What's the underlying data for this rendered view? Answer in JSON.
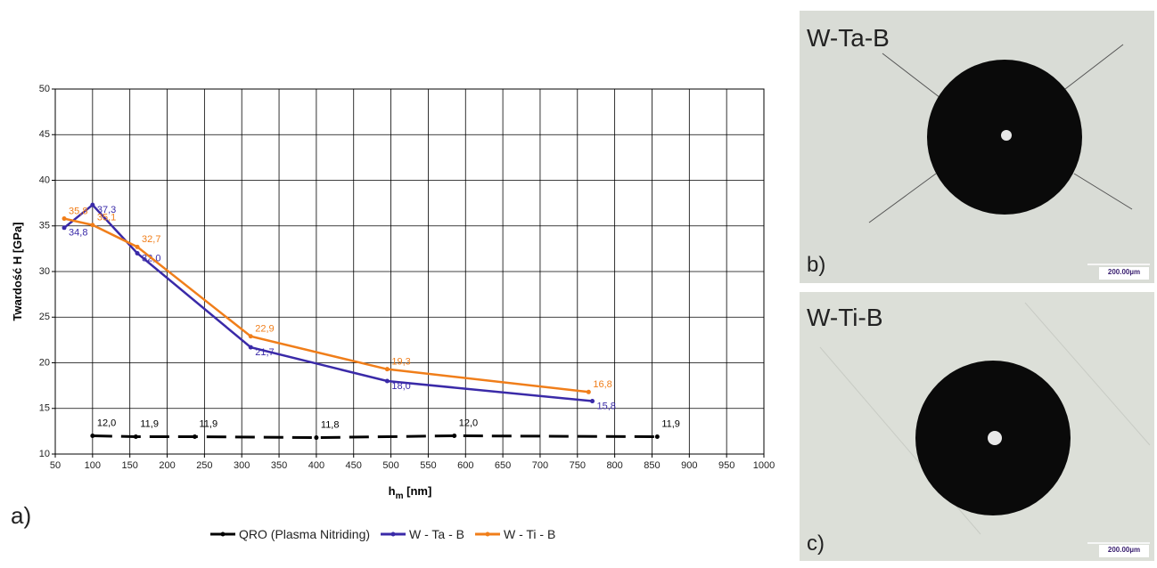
{
  "chart_data": {
    "type": "line",
    "panel_label": "a)",
    "y_label": "Twardość H [GPa]",
    "x_label_main": "h",
    "x_label_sub": "m",
    "x_label_unit": " [nm]",
    "xlim": [
      50,
      1000
    ],
    "xticks": [
      50,
      100,
      150,
      200,
      250,
      300,
      350,
      400,
      450,
      500,
      550,
      600,
      650,
      700,
      750,
      800,
      850,
      900,
      950,
      1000
    ],
    "ylim": [
      10,
      50
    ],
    "yticks": [
      10,
      15,
      20,
      25,
      30,
      35,
      40,
      45,
      50
    ],
    "grid": true,
    "legend": "bottom",
    "series": [
      {
        "name": "QRO (Plasma Nitriding)",
        "color": "#000000",
        "dashed": true,
        "x": [
          100,
          158,
          237,
          400,
          585,
          857
        ],
        "values": [
          12.0,
          11.9,
          11.9,
          11.8,
          12.0,
          11.9
        ],
        "value_labels": [
          "12,0",
          "11,9",
          "11,9",
          "11,8",
          "12,0",
          "11,9"
        ]
      },
      {
        "name": "W - Ta - B",
        "color": "#3a2aa8",
        "dashed": false,
        "x": [
          62,
          100,
          160,
          312,
          495,
          770
        ],
        "values": [
          34.8,
          37.3,
          32.0,
          21.7,
          18.0,
          15.8
        ],
        "value_labels": [
          "34,8",
          "37,3",
          "32,0",
          "21,7",
          "18,0",
          "15,8"
        ]
      },
      {
        "name": "W - Ti - B",
        "color": "#f07e1a",
        "dashed": false,
        "x": [
          62,
          100,
          160,
          312,
          495,
          765
        ],
        "values": [
          35.8,
          35.1,
          32.7,
          22.9,
          19.3,
          16.8
        ],
        "value_labels": [
          "35,8",
          "35,1",
          "32,7",
          "22,9",
          "19,3",
          "16,8"
        ]
      }
    ]
  },
  "panels": [
    {
      "label": "b)",
      "title": "W-Ta-B",
      "scale": "200.00µm"
    },
    {
      "label": "c)",
      "title": "W-Ti-B",
      "scale": "200.00µm"
    }
  ]
}
